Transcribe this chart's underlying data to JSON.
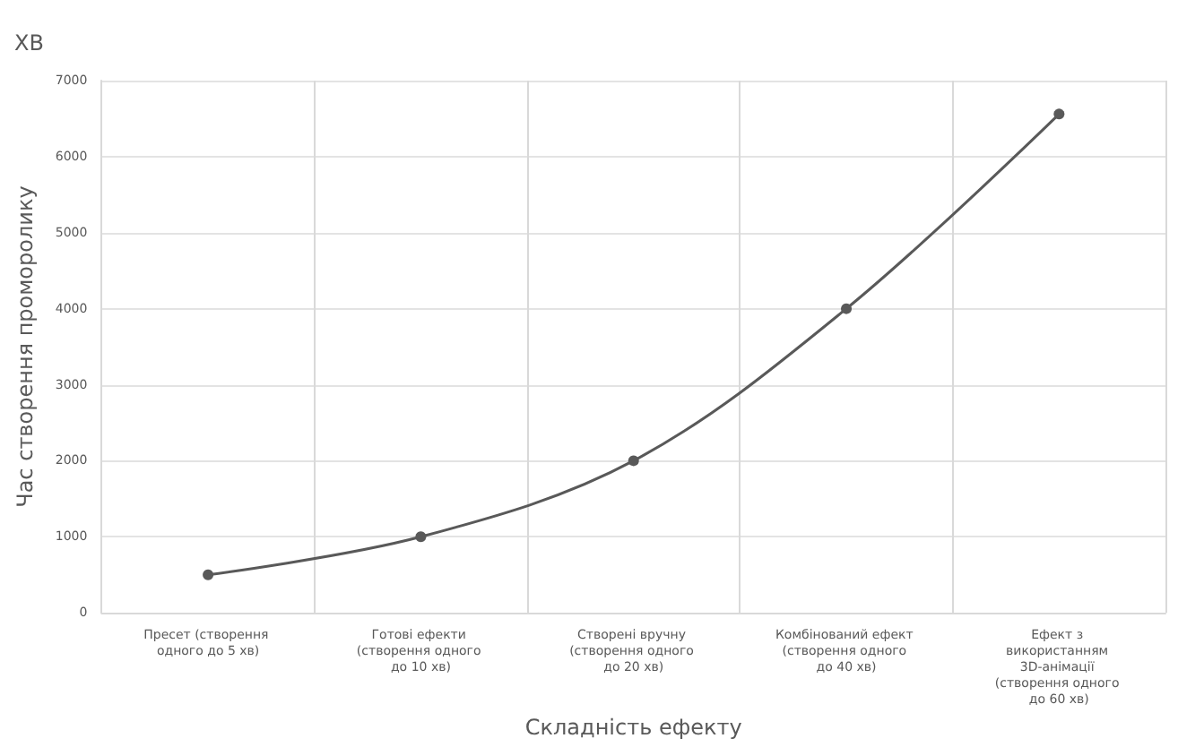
{
  "chart_data": {
    "type": "line",
    "xlabel": "Складність ефекту",
    "ylabel": "Час створення проморолику",
    "annotations": [
      "ХВ"
    ],
    "categories": [
      "Пресет (створення одного до 5 хв)",
      "Готові ефекти (створення одного до 10 хв)",
      "Створені вручну (створення одного до 20 хв)",
      "Комбінований ефект (створення одного до 40 хв)",
      "Ефект з використанням 3D-анімації (створення одного до 60 хв)"
    ],
    "series": [
      {
        "color": "#595959",
        "values": [
          500,
          1000,
          2000,
          4000,
          6560
        ]
      }
    ],
    "ylim": [
      0,
      7000
    ],
    "yticks": [
      0,
      1000,
      2000,
      3000,
      4000,
      5000,
      6000,
      7000
    ],
    "grid": true,
    "marker": "circle",
    "line_style": "solid"
  }
}
